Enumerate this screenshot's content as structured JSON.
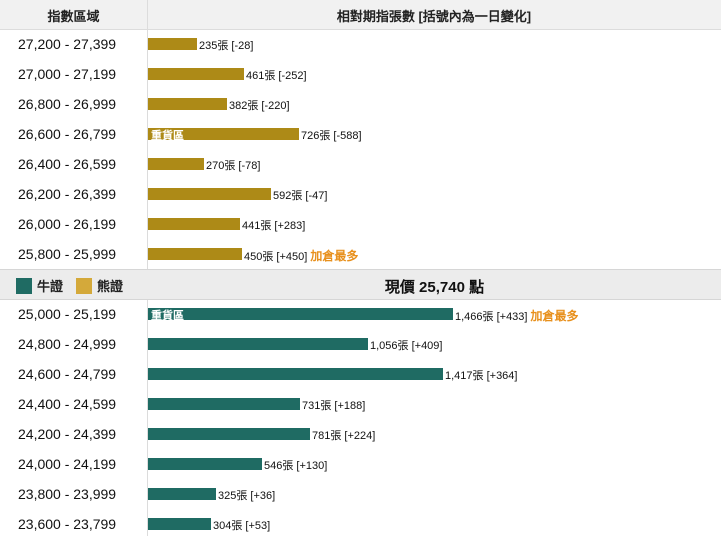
{
  "header": {
    "left": "指數區域",
    "right": "相對期指張數 [括號內為一日變化]"
  },
  "legend": {
    "bull_label": "牛證",
    "bear_label": "熊證",
    "bull_color": "#1f6b63",
    "bear_color": "#d4a93a"
  },
  "current_price": "現價 25,740 點",
  "chart_data": {
    "type": "bar",
    "orientation": "horizontal",
    "unit": "張",
    "bear_rows": [
      {
        "range": "27,200 - 27,399",
        "value": 235,
        "change": "-28",
        "label": "235張 [-28]"
      },
      {
        "range": "27,000 - 27,199",
        "value": 461,
        "change": "-252",
        "label": "461張 [-252]"
      },
      {
        "range": "26,800 - 26,999",
        "value": 382,
        "change": "-220",
        "label": "382張 [-220]"
      },
      {
        "range": "26,600 - 26,799",
        "value": 726,
        "change": "-588",
        "label": "726張 [-588]",
        "heavy": "重貨區"
      },
      {
        "range": "26,400 - 26,599",
        "value": 270,
        "change": "-78",
        "label": "270張 [-78]"
      },
      {
        "range": "26,200 - 26,399",
        "value": 592,
        "change": "-47",
        "label": "592張 [-47]"
      },
      {
        "range": "26,000 - 26,199",
        "value": 441,
        "change": "+283",
        "label": "441張 [+283]"
      },
      {
        "range": "25,800 - 25,999",
        "value": 450,
        "change": "+450",
        "label": "450張 [+450]",
        "tag": "加倉最多"
      }
    ],
    "bull_rows": [
      {
        "range": "25,000 - 25,199",
        "value": 1466,
        "change": "+433",
        "label": "1,466張 [+433]",
        "heavy": "重貨區",
        "tag": "加倉最多"
      },
      {
        "range": "24,800 - 24,999",
        "value": 1056,
        "change": "+409",
        "label": "1,056張 [+409]"
      },
      {
        "range": "24,600 - 24,799",
        "value": 1417,
        "change": "+364",
        "label": "1,417張 [+364]"
      },
      {
        "range": "24,400 - 24,599",
        "value": 731,
        "change": "+188",
        "label": "731張 [+188]"
      },
      {
        "range": "24,200 - 24,399",
        "value": 781,
        "change": "+224",
        "label": "781張 [+224]"
      },
      {
        "range": "24,000 - 24,199",
        "value": 546,
        "change": "+130",
        "label": "546張 [+130]"
      },
      {
        "range": "23,800 - 23,999",
        "value": 325,
        "change": "+36",
        "label": "325張 [+36]"
      },
      {
        "range": "23,600 - 23,799",
        "value": 304,
        "change": "+53",
        "label": "304張 [+53]"
      }
    ]
  }
}
